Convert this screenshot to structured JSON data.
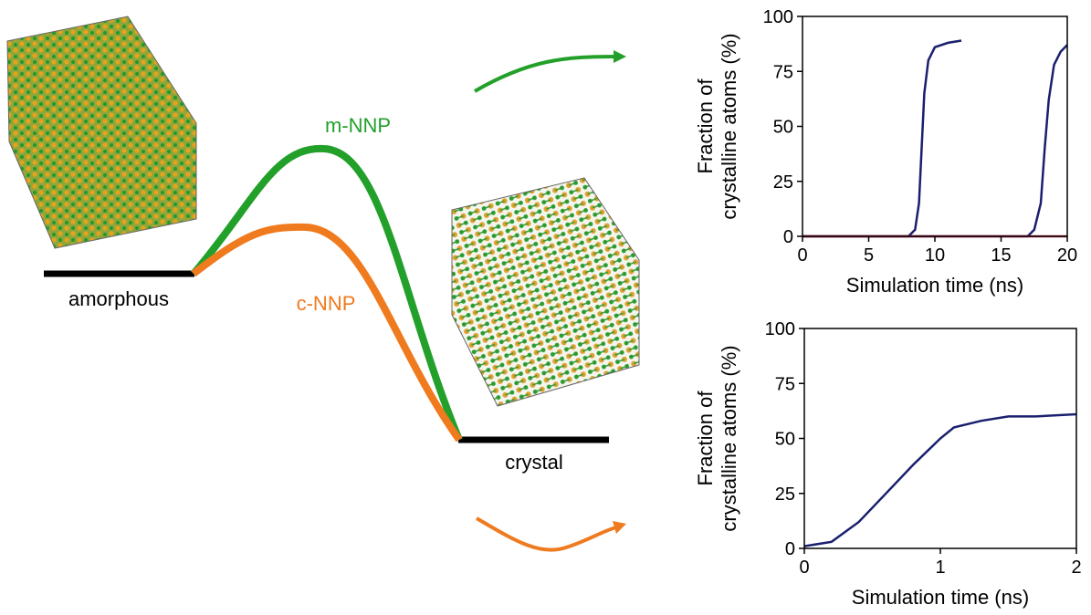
{
  "diagram": {
    "left_state": "amorphous",
    "right_state": "crystal",
    "upper_path": "m-NNP",
    "lower_path": "c-NNP"
  },
  "chart_data": [
    {
      "type": "line",
      "xlabel": "Simulation time (ns)",
      "ylabel": [
        "Fraction of",
        "crystalline atoms (%)"
      ],
      "xlim": [
        0,
        20
      ],
      "ylim": [
        0,
        100
      ],
      "xticks": [
        0,
        5,
        10,
        15,
        20
      ],
      "yticks": [
        0,
        25,
        50,
        75,
        100
      ],
      "series": [
        {
          "color": "#1a1f6e",
          "x": [
            0,
            8,
            8.5,
            8.8,
            9,
            9.2,
            9.5,
            10,
            11,
            12
          ],
          "values": [
            0,
            0,
            3,
            15,
            40,
            65,
            80,
            86,
            88,
            89
          ]
        },
        {
          "color": "#1a1f6e",
          "x": [
            0,
            17,
            17.5,
            18,
            18.3,
            18.6,
            19,
            19.5,
            20
          ],
          "values": [
            0,
            0,
            3,
            15,
            40,
            62,
            78,
            84,
            87
          ]
        },
        {
          "color": "#c0304a",
          "x": [
            0,
            20
          ],
          "values": [
            0,
            0
          ]
        }
      ]
    },
    {
      "type": "line",
      "xlabel": "Simulation time (ns)",
      "ylabel": [
        "Fraction of",
        "crystalline atoms (%)"
      ],
      "xlim": [
        0,
        2
      ],
      "ylim": [
        0,
        100
      ],
      "xticks": [
        0,
        1,
        2
      ],
      "yticks": [
        0,
        25,
        50,
        75,
        100
      ],
      "series": [
        {
          "color": "#1a1f6e",
          "x": [
            0,
            0.2,
            0.4,
            0.6,
            0.8,
            1.0,
            1.1,
            1.3,
            1.5,
            1.7,
            2.0
          ],
          "values": [
            1,
            3,
            12,
            25,
            38,
            50,
            55,
            58,
            60,
            60,
            61
          ]
        }
      ]
    }
  ]
}
